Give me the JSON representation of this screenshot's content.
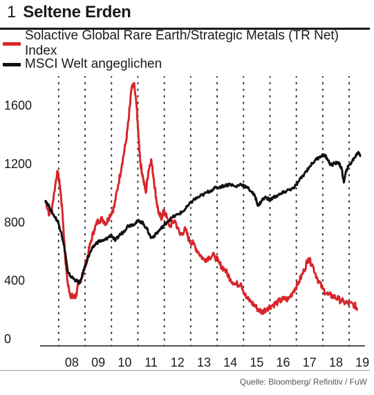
{
  "header": {
    "number": "1",
    "title": "Seltene Erden"
  },
  "legend": {
    "items": [
      {
        "label": "Solactive Global Rare Earth/Strategic Metals (TR Net) Index",
        "color": "#d7262b"
      },
      {
        "label": "MSCI Welt angeglichen",
        "color": "#111111"
      }
    ]
  },
  "source": "Quelle: Bloomberg/ Refinitiv / FuW",
  "chart_data": {
    "type": "line",
    "title": "Seltene Erden",
    "x_tick_labels": [
      "08",
      "09",
      "10",
      "11",
      "12",
      "13",
      "14",
      "15",
      "16",
      "17",
      "18",
      "19"
    ],
    "y_ticks": [
      0,
      400,
      800,
      1200,
      1600
    ],
    "xlim": [
      2007.35,
      2019.6
    ],
    "ylim": [
      0,
      1850
    ],
    "grid": "dotted-vertical",
    "legend_position": "top",
    "series": [
      {
        "name": "Solactive Global Rare Earth/Strategic Metals (TR Net) Index",
        "color": "#d7262b",
        "points": [
          [
            2007.5,
            1000
          ],
          [
            2007.65,
            900
          ],
          [
            2007.75,
            950
          ],
          [
            2007.95,
            1200
          ],
          [
            2008.05,
            1100
          ],
          [
            2008.15,
            900
          ],
          [
            2008.25,
            600
          ],
          [
            2008.35,
            420
          ],
          [
            2008.45,
            350
          ],
          [
            2008.55,
            330
          ],
          [
            2008.65,
            340
          ],
          [
            2008.75,
            420
          ],
          [
            2008.9,
            480
          ],
          [
            2009.05,
            580
          ],
          [
            2009.2,
            700
          ],
          [
            2009.35,
            800
          ],
          [
            2009.5,
            860
          ],
          [
            2009.65,
            870
          ],
          [
            2009.8,
            840
          ],
          [
            2009.95,
            900
          ],
          [
            2010.1,
            950
          ],
          [
            2010.25,
            1100
          ],
          [
            2010.4,
            1250
          ],
          [
            2010.55,
            1400
          ],
          [
            2010.65,
            1550
          ],
          [
            2010.75,
            1750
          ],
          [
            2010.85,
            1800
          ],
          [
            2010.95,
            1650
          ],
          [
            2011.0,
            1500
          ],
          [
            2011.1,
            1250
          ],
          [
            2011.2,
            1150
          ],
          [
            2011.3,
            1050
          ],
          [
            2011.4,
            1200
          ],
          [
            2011.5,
            1280
          ],
          [
            2011.6,
            1150
          ],
          [
            2011.7,
            1000
          ],
          [
            2011.8,
            900
          ],
          [
            2011.9,
            880
          ],
          [
            2012.0,
            930
          ],
          [
            2012.2,
            820
          ],
          [
            2012.4,
            860
          ],
          [
            2012.6,
            760
          ],
          [
            2012.8,
            800
          ],
          [
            2012.95,
            720
          ],
          [
            2013.1,
            700
          ],
          [
            2013.3,
            640
          ],
          [
            2013.5,
            590
          ],
          [
            2013.7,
            610
          ],
          [
            2013.9,
            620
          ],
          [
            2014.1,
            560
          ],
          [
            2014.3,
            520
          ],
          [
            2014.5,
            460
          ],
          [
            2014.7,
            420
          ],
          [
            2014.9,
            430
          ],
          [
            2015.1,
            330
          ],
          [
            2015.3,
            300
          ],
          [
            2015.5,
            260
          ],
          [
            2015.7,
            230
          ],
          [
            2015.9,
            260
          ],
          [
            2016.1,
            280
          ],
          [
            2016.3,
            300
          ],
          [
            2016.5,
            320
          ],
          [
            2016.7,
            320
          ],
          [
            2016.9,
            380
          ],
          [
            2017.1,
            440
          ],
          [
            2017.3,
            520
          ],
          [
            2017.45,
            600
          ],
          [
            2017.6,
            560
          ],
          [
            2017.8,
            460
          ],
          [
            2018.0,
            390
          ],
          [
            2018.2,
            350
          ],
          [
            2018.4,
            340
          ],
          [
            2018.6,
            320
          ],
          [
            2018.8,
            300
          ],
          [
            2019.0,
            290
          ],
          [
            2019.2,
            280
          ],
          [
            2019.3,
            260
          ]
        ]
      },
      {
        "name": "MSCI Welt angeglichen",
        "color": "#111111",
        "points": [
          [
            2007.5,
            1000
          ],
          [
            2007.65,
            950
          ],
          [
            2007.8,
            900
          ],
          [
            2007.95,
            860
          ],
          [
            2008.1,
            780
          ],
          [
            2008.25,
            640
          ],
          [
            2008.35,
            500
          ],
          [
            2008.5,
            470
          ],
          [
            2008.65,
            450
          ],
          [
            2008.8,
            430
          ],
          [
            2008.95,
            520
          ],
          [
            2009.1,
            600
          ],
          [
            2009.25,
            660
          ],
          [
            2009.4,
            700
          ],
          [
            2009.55,
            720
          ],
          [
            2009.7,
            720
          ],
          [
            2009.85,
            740
          ],
          [
            2010.0,
            760
          ],
          [
            2010.15,
            720
          ],
          [
            2010.3,
            760
          ],
          [
            2010.45,
            780
          ],
          [
            2010.6,
            820
          ],
          [
            2010.75,
            830
          ],
          [
            2010.9,
            840
          ],
          [
            2011.05,
            860
          ],
          [
            2011.2,
            840
          ],
          [
            2011.35,
            800
          ],
          [
            2011.5,
            740
          ],
          [
            2011.65,
            760
          ],
          [
            2011.8,
            790
          ],
          [
            2011.95,
            820
          ],
          [
            2012.1,
            850
          ],
          [
            2012.3,
            880
          ],
          [
            2012.5,
            900
          ],
          [
            2012.7,
            920
          ],
          [
            2012.9,
            960
          ],
          [
            2013.1,
            1000
          ],
          [
            2013.3,
            1020
          ],
          [
            2013.5,
            1040
          ],
          [
            2013.7,
            1060
          ],
          [
            2013.9,
            1080
          ],
          [
            2014.1,
            1090
          ],
          [
            2014.3,
            1100
          ],
          [
            2014.5,
            1110
          ],
          [
            2014.7,
            1090
          ],
          [
            2014.9,
            1110
          ],
          [
            2015.1,
            1090
          ],
          [
            2015.3,
            1060
          ],
          [
            2015.45,
            1020
          ],
          [
            2015.55,
            960
          ],
          [
            2015.7,
            1000
          ],
          [
            2015.85,
            1020
          ],
          [
            2016.0,
            1000
          ],
          [
            2016.15,
            1020
          ],
          [
            2016.3,
            1030
          ],
          [
            2016.5,
            1050
          ],
          [
            2016.7,
            1070
          ],
          [
            2016.9,
            1080
          ],
          [
            2017.1,
            1130
          ],
          [
            2017.3,
            1180
          ],
          [
            2017.5,
            1230
          ],
          [
            2017.7,
            1270
          ],
          [
            2017.9,
            1300
          ],
          [
            2018.05,
            1310
          ],
          [
            2018.15,
            1290
          ],
          [
            2018.3,
            1240
          ],
          [
            2018.45,
            1250
          ],
          [
            2018.6,
            1260
          ],
          [
            2018.72,
            1210
          ],
          [
            2018.8,
            1120
          ],
          [
            2018.9,
            1210
          ],
          [
            2019.05,
            1250
          ],
          [
            2019.2,
            1290
          ],
          [
            2019.35,
            1330
          ],
          [
            2019.45,
            1300
          ]
        ]
      }
    ]
  }
}
